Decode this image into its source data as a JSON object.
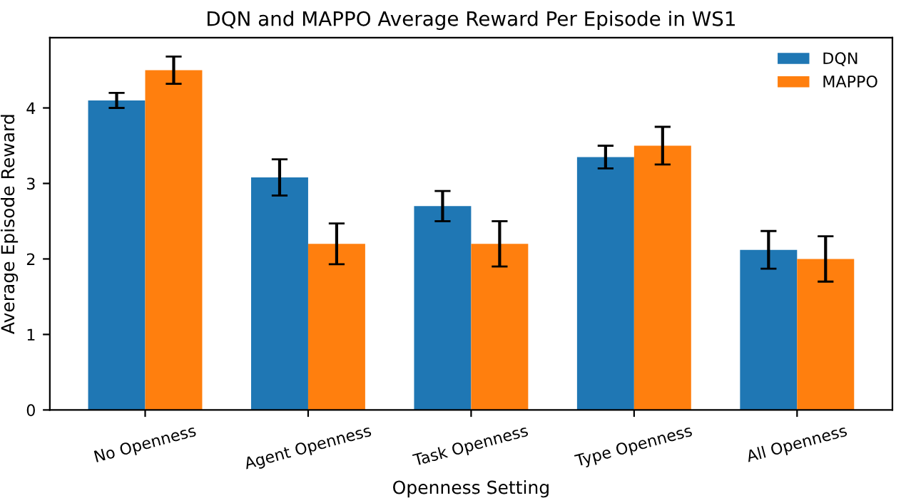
{
  "chart_data": {
    "type": "bar",
    "title": "DQN and MAPPO Average Reward Per Episode in WS1",
    "xlabel": "Openness Setting",
    "ylabel": "Average Episode Reward",
    "categories": [
      "No Openness",
      "Agent Openness",
      "Task Openness",
      "Type Openness",
      "All Openness"
    ],
    "series": [
      {
        "name": "DQN",
        "color": "#1f77b4",
        "values": [
          4.1,
          3.08,
          2.7,
          3.35,
          2.12
        ],
        "errors": [
          0.1,
          0.24,
          0.2,
          0.15,
          0.25
        ]
      },
      {
        "name": "MAPPO",
        "color": "#ff7f0e",
        "values": [
          4.5,
          2.2,
          2.2,
          3.5,
          2.0
        ],
        "errors": [
          0.18,
          0.27,
          0.3,
          0.25,
          0.3
        ]
      }
    ],
    "ylim": [
      0,
      4.93
    ],
    "yticks": [
      0,
      1,
      2,
      3,
      4
    ],
    "legend": "top right",
    "grid": false
  }
}
